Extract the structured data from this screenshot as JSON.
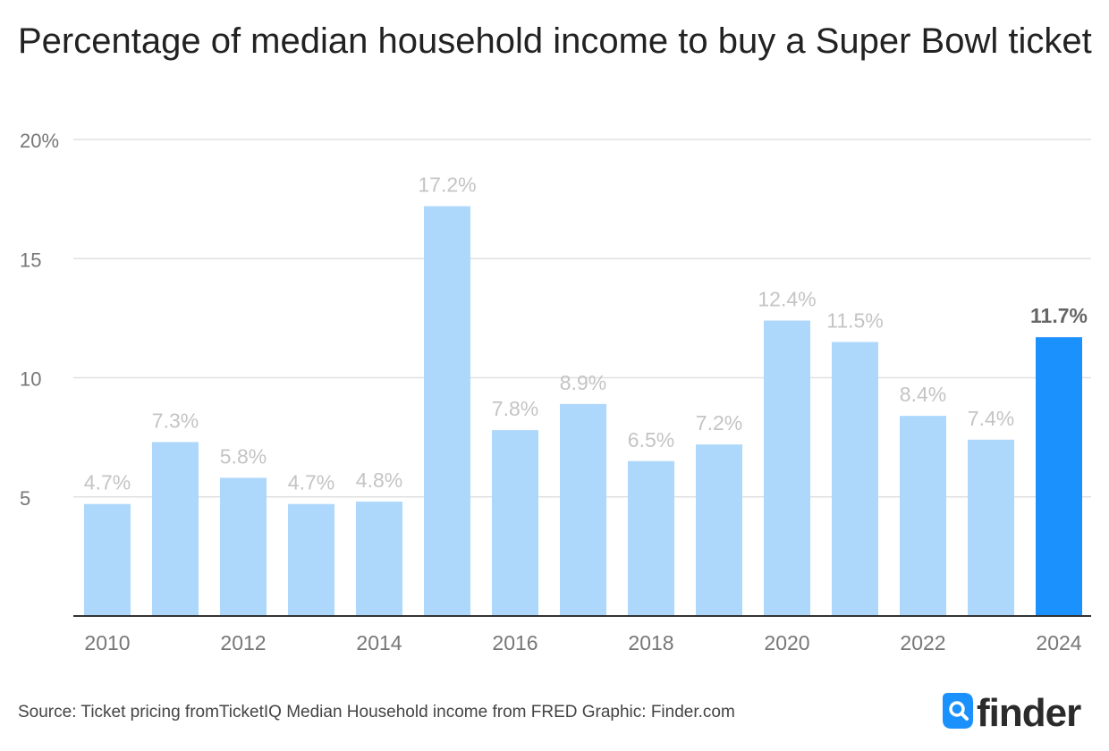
{
  "chart_data": {
    "type": "bar",
    "title": "Percentage of median household income to buy a Super Bowl ticket",
    "xlabel": "",
    "ylabel": "",
    "ylim": [
      0,
      20
    ],
    "yticks": [
      {
        "value": 5,
        "label": "5"
      },
      {
        "value": 10,
        "label": "10"
      },
      {
        "value": 15,
        "label": "15"
      },
      {
        "value": 20,
        "label": "20%"
      }
    ],
    "categories": [
      "2010",
      "2011",
      "2012",
      "2013",
      "2014",
      "2015",
      "2016",
      "2017",
      "2018",
      "2019",
      "2020",
      "2021",
      "2022",
      "2023",
      "2024"
    ],
    "values": [
      4.7,
      7.3,
      5.8,
      4.7,
      4.8,
      17.2,
      7.8,
      8.9,
      6.5,
      7.2,
      12.4,
      11.5,
      8.4,
      7.4,
      11.7
    ],
    "data_labels": [
      "4.7%",
      "7.3%",
      "5.8%",
      "4.7%",
      "4.8%",
      "17.2%",
      "7.8%",
      "8.9%",
      "6.5%",
      "7.2%",
      "12.4%",
      "11.5%",
      "8.4%",
      "7.4%",
      "11.7%"
    ],
    "x_tick_labels": [
      "2010",
      "",
      "2012",
      "",
      "2014",
      "",
      "2016",
      "",
      "2018",
      "",
      "2020",
      "",
      "2022",
      "",
      "2024"
    ],
    "highlight_index": 14,
    "colors": {
      "bar": "#add8fb",
      "highlight": "#1a91fc",
      "label": "#c4c4c4",
      "highlight_label": "#666666",
      "axis_text": "#777777",
      "grid": "#e0e0e0",
      "baseline": "#333333"
    }
  },
  "footer": {
    "source": "Source: Ticket pricing fromTicketIQ Median Household income from FRED Graphic: Finder.com"
  },
  "logo": {
    "text": "finder",
    "color": "#1a91fc",
    "text_color": "#2b2b2b"
  }
}
